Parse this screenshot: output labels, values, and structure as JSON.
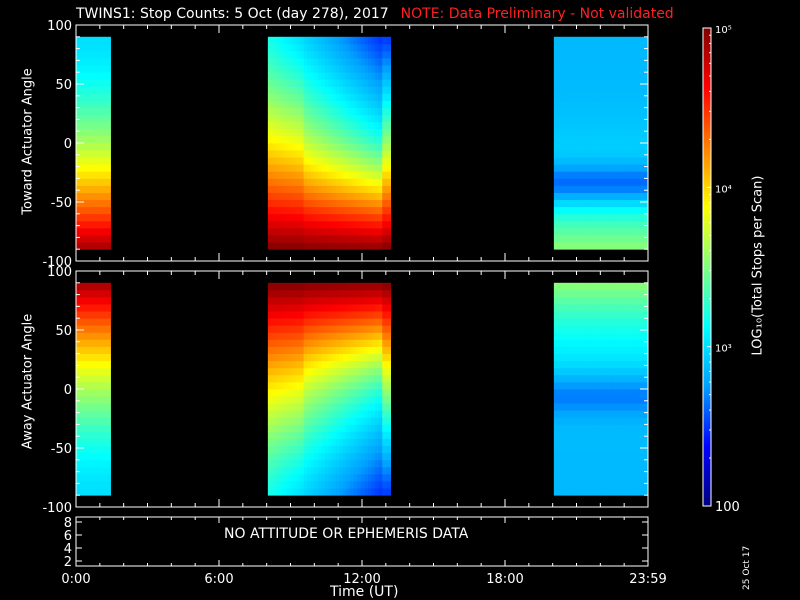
{
  "title": {
    "main": "TWINS1: Stop Counts:  5 Oct (day 278), 2017",
    "note": "NOTE: Data Preliminary - Not validated"
  },
  "datestamp": "25 Oct 17",
  "status_panel": {
    "message": "NO ATTITUDE OR EPHEMERIS DATA",
    "yticks": [
      "2",
      "4",
      "6",
      "8"
    ]
  },
  "colorbar": {
    "label": "LOG₁₀(Total Stops per Scan)",
    "tick_labels": [
      "100",
      "10³",
      "10⁴",
      "10⁵"
    ],
    "range": [
      100,
      100000
    ],
    "scale": "log",
    "colormap": [
      "#000080",
      "#0000ff",
      "#00a0ff",
      "#00ffff",
      "#80ff80",
      "#ffff00",
      "#ff8000",
      "#ff0000",
      "#800000"
    ]
  },
  "chart_data": [
    {
      "type": "heatmap",
      "ylabel": "Toward Actuator Angle",
      "xlabel": "",
      "xlim": [
        0,
        24
      ],
      "ylim": [
        -100,
        100
      ],
      "x_tick_labels": [
        "0:00",
        "6:00",
        "12:00",
        "18:00",
        "23:59"
      ],
      "y_tick_labels": [
        "-100",
        "-50",
        "0",
        "50",
        "100"
      ],
      "data_y_range": [
        -90,
        90
      ],
      "coverage_hours": [
        [
          0.0,
          1.45
        ],
        [
          8.05,
          13.2
        ],
        [
          20.05,
          24.0
        ]
      ],
      "approx_log10_counts": {
        "hour_0_1.4": "3.0 at +90 deg rising to 4.8 near -90 deg",
        "hour_8_13": "2.6-3.0 near +80 deg, 3.8-4.2 mid angles, 4.6-5.0 near -90 deg",
        "hour_20_24": "2.5-2.8 over most angles, minimum near -35 deg"
      }
    },
    {
      "type": "heatmap",
      "ylabel": "Away Actuator Angle",
      "xlabel": "",
      "xlim": [
        0,
        24
      ],
      "ylim": [
        -100,
        100
      ],
      "x_tick_labels": [
        "0:00",
        "6:00",
        "12:00",
        "18:00",
        "23:59"
      ],
      "y_tick_labels": [
        "-100",
        "-50",
        "0",
        "50",
        "100"
      ],
      "data_y_range": [
        -90,
        90
      ],
      "coverage_hours": [
        [
          0.0,
          1.45
        ],
        [
          8.05,
          13.2
        ],
        [
          20.05,
          24.0
        ]
      ],
      "approx_log10_counts": {
        "hour_0_1.4": "4.6 near +90 deg falling to 3.0 near -90 deg",
        "hour_8_13": "4.8-5.0 near +90 deg, 3.8-4.2 mid angles, 3.0-3.4 near -90 deg",
        "hour_20_24": "3.4 near +90 deg, 2.4-2.6 over lower angles"
      }
    }
  ],
  "x_axis": {
    "title": "Time (UT)",
    "tick_labels": [
      "0:00",
      "6:00",
      "12:00",
      "18:00",
      "23:59"
    ]
  }
}
